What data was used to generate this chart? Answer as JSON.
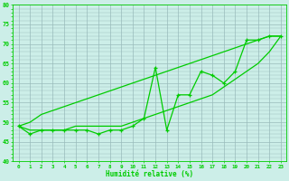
{
  "x": [
    0,
    1,
    2,
    3,
    4,
    5,
    6,
    7,
    8,
    9,
    10,
    11,
    12,
    13,
    14,
    15,
    16,
    17,
    18,
    19,
    20,
    21,
    22,
    23
  ],
  "y_main": [
    49,
    47,
    48,
    48,
    48,
    48,
    48,
    47,
    48,
    48,
    49,
    51,
    64,
    48,
    57,
    57,
    63,
    62,
    60,
    63,
    71,
    71,
    72,
    72
  ],
  "y_upper": [
    49,
    50,
    52,
    53,
    54,
    55,
    56,
    57,
    58,
    59,
    60,
    61,
    62,
    63,
    64,
    65,
    66,
    67,
    68,
    69,
    70,
    71,
    72,
    72
  ],
  "y_lower": [
    49,
    48,
    48,
    48,
    48,
    49,
    49,
    49,
    49,
    49,
    50,
    51,
    52,
    53,
    54,
    55,
    56,
    57,
    59,
    61,
    63,
    65,
    68,
    72
  ],
  "line_color": "#00cc00",
  "bg_color": "#cceee8",
  "grid_color": "#99bbbb",
  "xlabel": "Humidité relative (%)",
  "ylim": [
    40,
    80
  ],
  "xlim": [
    -0.5,
    23.5
  ],
  "yticks": [
    40,
    45,
    50,
    55,
    60,
    65,
    70,
    75,
    80
  ],
  "title": ""
}
